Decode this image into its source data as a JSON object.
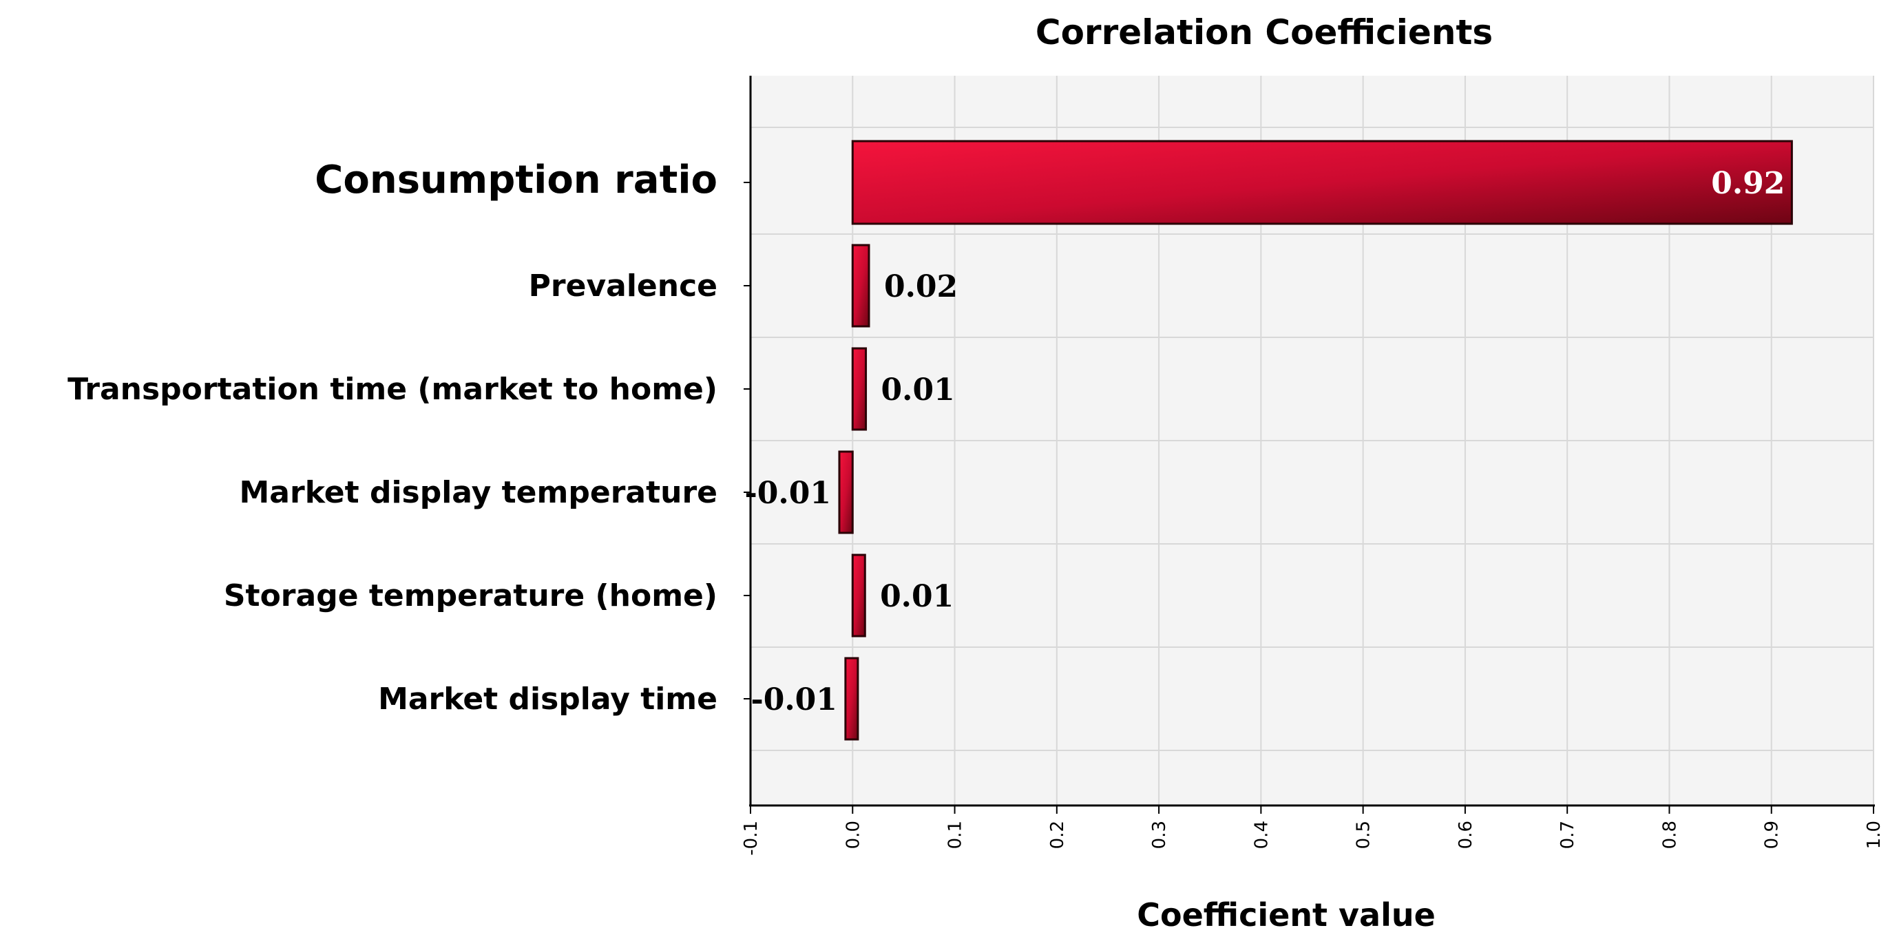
{
  "chart_data": {
    "type": "bar",
    "orientation": "horizontal",
    "title": "Correlation Coefficients",
    "xlabel": "Coefficient value",
    "ylabel": "",
    "xlim": [
      -0.1,
      1.0
    ],
    "xticks": [
      -0.1,
      0.0,
      0.1,
      0.2,
      0.3,
      0.4,
      0.5,
      0.6,
      0.7,
      0.8,
      0.9,
      1.0
    ],
    "xtick_labels": [
      "-0.1",
      "0.0",
      "0.1",
      "0.2",
      "0.3",
      "0.4",
      "0.5",
      "0.6",
      "0.7",
      "0.8",
      "0.9",
      "1.0"
    ],
    "grid": true,
    "categories": [
      "Consumption ratio",
      "Prevalence",
      "Transportation time (market to home)",
      "Market display temperature",
      "Storage temperature (home)",
      "Market display time"
    ],
    "values": [
      0.92,
      0.016,
      0.013,
      -0.013,
      0.012,
      -0.007
    ],
    "data_labels": [
      "0.92",
      "0.02",
      "0.01",
      "-0.01",
      "0.01",
      "-0.01"
    ],
    "colors": {
      "bar_light": "#f4143c",
      "bar_mid": "#cc0a30",
      "bar_dark": "#6e0414",
      "plot_background": "#f4f4f4",
      "grid": "#d8d8d8",
      "axis": "#000000"
    }
  }
}
